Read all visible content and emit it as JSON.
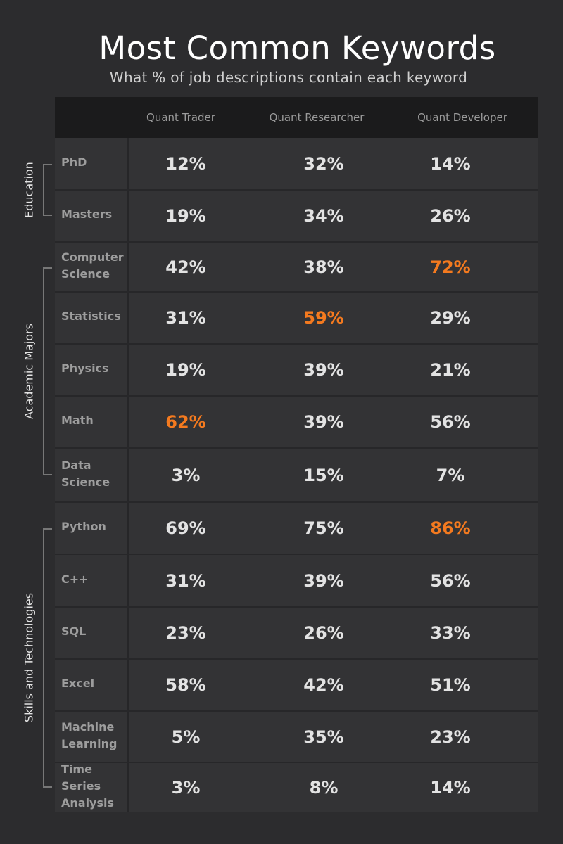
{
  "title": "Most Common Keywords",
  "subtitle": "What % of job descriptions contain each keyword",
  "chart_data": {
    "type": "table",
    "columns": [
      "Quant Trader",
      "Quant Researcher",
      "Quant Developer"
    ],
    "groups": [
      {
        "name": "Education",
        "rows": [
          {
            "label": "PhD",
            "values": [
              "12%",
              "32%",
              "14%"
            ],
            "highlight": -1
          },
          {
            "label": "Masters",
            "values": [
              "19%",
              "34%",
              "26%"
            ],
            "highlight": -1
          }
        ]
      },
      {
        "name": "Academic Majors",
        "rows": [
          {
            "label": "Computer Science",
            "values": [
              "42%",
              "38%",
              "72%"
            ],
            "highlight": 2
          },
          {
            "label": "Statistics",
            "values": [
              "31%",
              "59%",
              "29%"
            ],
            "highlight": 1
          },
          {
            "label": "Physics",
            "values": [
              "19%",
              "39%",
              "21%"
            ],
            "highlight": -1
          },
          {
            "label": "Math",
            "values": [
              "62%",
              "39%",
              "56%"
            ],
            "highlight": 0
          },
          {
            "label": "Data Science",
            "values": [
              "3%",
              "15%",
              "7%"
            ],
            "highlight": -1
          }
        ]
      },
      {
        "name": "Skills and Technologies",
        "rows": [
          {
            "label": "Python",
            "values": [
              "69%",
              "75%",
              "86%"
            ],
            "highlight": 2
          },
          {
            "label": "C++",
            "values": [
              "31%",
              "39%",
              "56%"
            ],
            "highlight": -1
          },
          {
            "label": "SQL",
            "values": [
              "23%",
              "26%",
              "33%"
            ],
            "highlight": -1
          },
          {
            "label": "Excel",
            "values": [
              "58%",
              "42%",
              "51%"
            ],
            "highlight": -1
          },
          {
            "label": "Machine Learning",
            "values": [
              "5%",
              "35%",
              "23%"
            ],
            "highlight": -1
          },
          {
            "label": "Time Series Analysis",
            "values": [
              "3%",
              "8%",
              "14%"
            ],
            "highlight": -1
          }
        ]
      }
    ],
    "colors": {
      "background": "#2c2c2e",
      "table": "#333335",
      "header": "#1b1b1c",
      "highlight": "#f47a1f",
      "value": "#e3e3e3"
    }
  }
}
